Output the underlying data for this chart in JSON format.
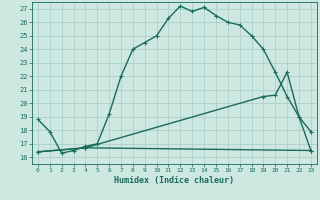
{
  "title": "",
  "xlabel": "Humidex (Indice chaleur)",
  "bg_color": "#cce8e0",
  "line_color": "#1a6b5a",
  "grid_color": "#a8ccc4",
  "xlim": [
    -0.5,
    23.5
  ],
  "ylim": [
    15.5,
    27.5
  ],
  "xticks": [
    0,
    1,
    2,
    3,
    4,
    5,
    6,
    7,
    8,
    9,
    10,
    11,
    12,
    13,
    14,
    15,
    16,
    17,
    18,
    19,
    20,
    21,
    22,
    23
  ],
  "yticks": [
    16,
    17,
    18,
    19,
    20,
    21,
    22,
    23,
    24,
    25,
    26,
    27
  ],
  "line1": {
    "x": [
      0,
      1,
      2,
      3,
      4,
      5,
      6,
      7,
      8,
      9,
      10,
      11,
      12,
      13,
      14,
      15,
      16,
      17,
      18,
      19,
      20,
      21,
      22,
      23
    ],
    "y": [
      18.8,
      17.9,
      16.3,
      16.5,
      16.8,
      17.0,
      19.2,
      22.0,
      24.0,
      24.5,
      25.0,
      26.3,
      27.2,
      26.8,
      27.1,
      26.5,
      26.0,
      25.8,
      25.0,
      24.0,
      22.3,
      20.5,
      19.0,
      17.9
    ]
  },
  "line2": {
    "x": [
      0,
      4,
      23
    ],
    "y": [
      16.4,
      16.7,
      16.5
    ]
  },
  "line3": {
    "x": [
      0,
      4,
      19,
      20,
      21,
      22,
      23
    ],
    "y": [
      16.4,
      16.7,
      20.5,
      20.6,
      22.3,
      19.0,
      16.5
    ]
  }
}
